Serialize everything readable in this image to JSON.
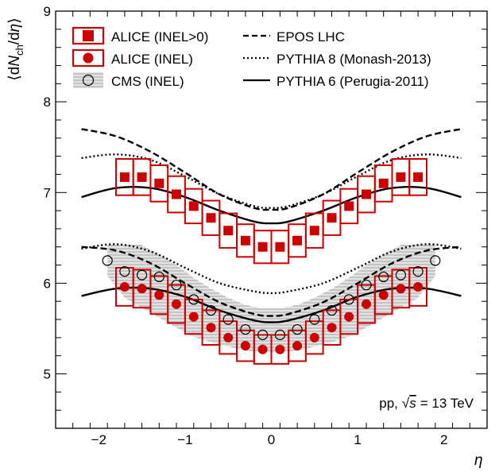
{
  "chart_data": {
    "type": "scatter",
    "title": "",
    "xlabel": "η",
    "ylabel": "⟨dN_ch/dη⟩",
    "xlim": [
      -2.5,
      2.5
    ],
    "ylim": [
      4.4,
      9.0
    ],
    "x_ticks": [
      -2,
      -1,
      0,
      1,
      2
    ],
    "x_tick_labels": [
      "−2",
      "−1",
      "0",
      "1",
      "2"
    ],
    "y_ticks": [
      5,
      6,
      7,
      8,
      9
    ],
    "y_tick_labels": [
      "5",
      "6",
      "7",
      "8",
      "9"
    ],
    "grid": false,
    "legend_position": "top",
    "annotation": {
      "prefix": "pp,",
      "energy": "s",
      "suffix": "= 13 TeV"
    },
    "series": [
      {
        "name": "ALICE (INEL>0)",
        "kind": "points-with-systematic-boxes",
        "marker": "square",
        "color": "#cc0000",
        "x": [
          -1.7,
          -1.5,
          -1.3,
          -1.1,
          -0.9,
          -0.7,
          -0.5,
          -0.3,
          -0.1,
          0.1,
          0.3,
          0.5,
          0.7,
          0.9,
          1.1,
          1.3,
          1.5,
          1.7
        ],
        "y": [
          7.17,
          7.17,
          7.1,
          6.98,
          6.85,
          6.72,
          6.58,
          6.47,
          6.4,
          6.4,
          6.47,
          6.58,
          6.72,
          6.85,
          6.98,
          7.1,
          7.17,
          7.17
        ],
        "syst": [
          0.2,
          0.2,
          0.2,
          0.2,
          0.19,
          0.19,
          0.19,
          0.18,
          0.18,
          0.18,
          0.18,
          0.19,
          0.19,
          0.19,
          0.2,
          0.2,
          0.2,
          0.2
        ]
      },
      {
        "name": "ALICE (INEL)",
        "kind": "points-with-systematic-boxes",
        "marker": "circle",
        "color": "#cc0000",
        "x": [
          -1.7,
          -1.5,
          -1.3,
          -1.1,
          -0.9,
          -0.7,
          -0.5,
          -0.3,
          -0.1,
          0.1,
          0.3,
          0.5,
          0.7,
          0.9,
          1.1,
          1.3,
          1.5,
          1.7
        ],
        "y": [
          5.96,
          5.94,
          5.87,
          5.77,
          5.63,
          5.51,
          5.4,
          5.31,
          5.27,
          5.27,
          5.31,
          5.4,
          5.51,
          5.63,
          5.77,
          5.87,
          5.94,
          5.96
        ],
        "syst": [
          0.21,
          0.21,
          0.21,
          0.21,
          0.19,
          0.19,
          0.18,
          0.17,
          0.16,
          0.16,
          0.17,
          0.18,
          0.19,
          0.19,
          0.21,
          0.21,
          0.21,
          0.21
        ]
      },
      {
        "name": "CMS (INEL)",
        "kind": "open-circles-with-hatched-band",
        "marker": "open-circle",
        "color": "#000000",
        "x": [
          -1.9,
          -1.7,
          -1.5,
          -1.3,
          -1.1,
          -0.9,
          -0.7,
          -0.5,
          -0.3,
          -0.1,
          0.1,
          0.3,
          0.5,
          0.7,
          0.9,
          1.1,
          1.3,
          1.5,
          1.7,
          1.9
        ],
        "y": [
          6.25,
          6.13,
          6.09,
          6.07,
          5.98,
          5.82,
          5.7,
          5.6,
          5.49,
          5.43,
          5.43,
          5.49,
          5.6,
          5.7,
          5.82,
          5.98,
          6.07,
          6.09,
          6.13,
          6.25
        ],
        "band_low": [
          6.08,
          5.84,
          5.73,
          5.62,
          5.51,
          5.41,
          5.35,
          5.3,
          5.26,
          5.24,
          5.24,
          5.26,
          5.3,
          5.35,
          5.41,
          5.51,
          5.62,
          5.73,
          5.84,
          6.08
        ],
        "band_high": [
          6.42,
          6.43,
          6.42,
          6.32,
          6.2,
          6.06,
          5.94,
          5.84,
          5.76,
          5.72,
          5.72,
          5.76,
          5.84,
          5.94,
          6.06,
          6.2,
          6.32,
          6.42,
          6.43,
          6.42
        ]
      },
      {
        "name": "EPOS LHC",
        "kind": "curves",
        "line_style": "dashed",
        "color": "#000000",
        "x": [
          -2.2,
          -1.8,
          -1.4,
          -1.0,
          -0.6,
          -0.2,
          0,
          0.2,
          0.6,
          1.0,
          1.4,
          1.8,
          2.2
        ],
        "curves": [
          [
            7.7,
            7.62,
            7.45,
            7.22,
            6.98,
            6.83,
            6.81,
            6.83,
            6.98,
            7.22,
            7.45,
            7.62,
            7.7
          ],
          [
            6.4,
            6.36,
            6.22,
            6.0,
            5.79,
            5.66,
            5.64,
            5.66,
            5.79,
            6.0,
            6.22,
            6.36,
            6.4
          ]
        ]
      },
      {
        "name": "PYTHIA 8 (Monash-2013)",
        "kind": "curves",
        "line_style": "dotted",
        "color": "#000000",
        "x": [
          -2.2,
          -1.8,
          -1.4,
          -1.0,
          -0.6,
          -0.2,
          0,
          0.2,
          0.6,
          1.0,
          1.4,
          1.8,
          2.2
        ],
        "curves": [
          [
            7.38,
            7.42,
            7.36,
            7.18,
            6.98,
            6.85,
            6.83,
            6.85,
            6.98,
            7.18,
            7.36,
            7.42,
            7.38
          ],
          [
            6.38,
            6.43,
            6.35,
            6.17,
            6.0,
            5.91,
            5.89,
            5.91,
            6.0,
            6.17,
            6.35,
            6.43,
            6.38
          ]
        ]
      },
      {
        "name": "PYTHIA 6 (Perugia-2011)",
        "kind": "curves",
        "line_style": "solid",
        "color": "#000000",
        "x": [
          -2.2,
          -1.8,
          -1.4,
          -1.0,
          -0.6,
          -0.2,
          0,
          0.2,
          0.6,
          1.0,
          1.4,
          1.8,
          2.2
        ],
        "curves": [
          [
            6.95,
            7.05,
            7.05,
            6.95,
            6.8,
            6.68,
            6.66,
            6.68,
            6.8,
            6.95,
            7.05,
            7.05,
            6.95
          ],
          [
            5.86,
            5.94,
            5.94,
            5.85,
            5.7,
            5.59,
            5.57,
            5.59,
            5.7,
            5.85,
            5.94,
            5.94,
            5.86
          ]
        ]
      }
    ]
  }
}
